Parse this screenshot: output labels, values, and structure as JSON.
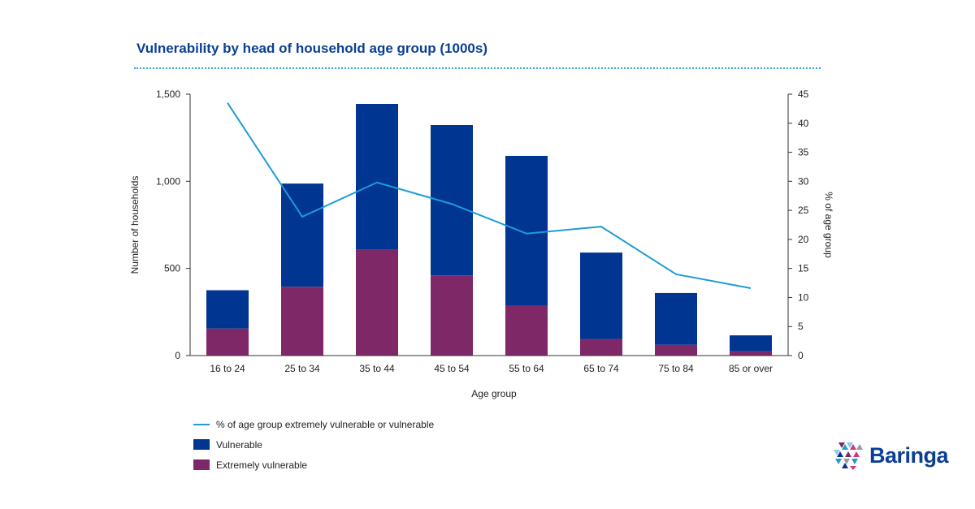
{
  "colors": {
    "vulnerable": "#003591",
    "extremely": "#7f2867",
    "line": "#1f9bd7",
    "title": "#0b3f95"
  },
  "chart_data": {
    "type": "bar",
    "stacked": true,
    "title": "Vulnerability by head of household age group (1000s)",
    "xlabel": "Age group",
    "ylabel": "Number of households",
    "y2label": "% of age group",
    "ylim": [
      0,
      1500
    ],
    "y2lim": [
      0,
      45
    ],
    "yticks": [
      "0",
      "500",
      "1,000",
      "1,500"
    ],
    "y2ticks": [
      "0",
      "5",
      "10",
      "15",
      "20",
      "25",
      "30",
      "35",
      "40",
      "45"
    ],
    "categories": [
      "16 to 24",
      "25 to 34",
      "35 to 44",
      "45 to 54",
      "55 to 64",
      "65 to 74",
      "75 to 84",
      "85 or over"
    ],
    "series": [
      {
        "name": "Extremely vulnerable",
        "type": "bar",
        "values": [
          155,
          395,
          610,
          460,
          285,
          95,
          62,
          25
        ]
      },
      {
        "name": "Vulnerable",
        "type": "bar",
        "values": [
          220,
          592,
          834,
          863,
          861,
          496,
          297,
          91
        ]
      },
      {
        "name": "% of age group extremely vulnerable or vulnerable",
        "type": "line",
        "axis": "right",
        "values": [
          43.5,
          23.9,
          29.8,
          26.1,
          21.0,
          22.2,
          14.0,
          11.6
        ]
      }
    ],
    "grid": false,
    "legend": "bottom-left"
  },
  "logo": {
    "text": "Baringa"
  }
}
